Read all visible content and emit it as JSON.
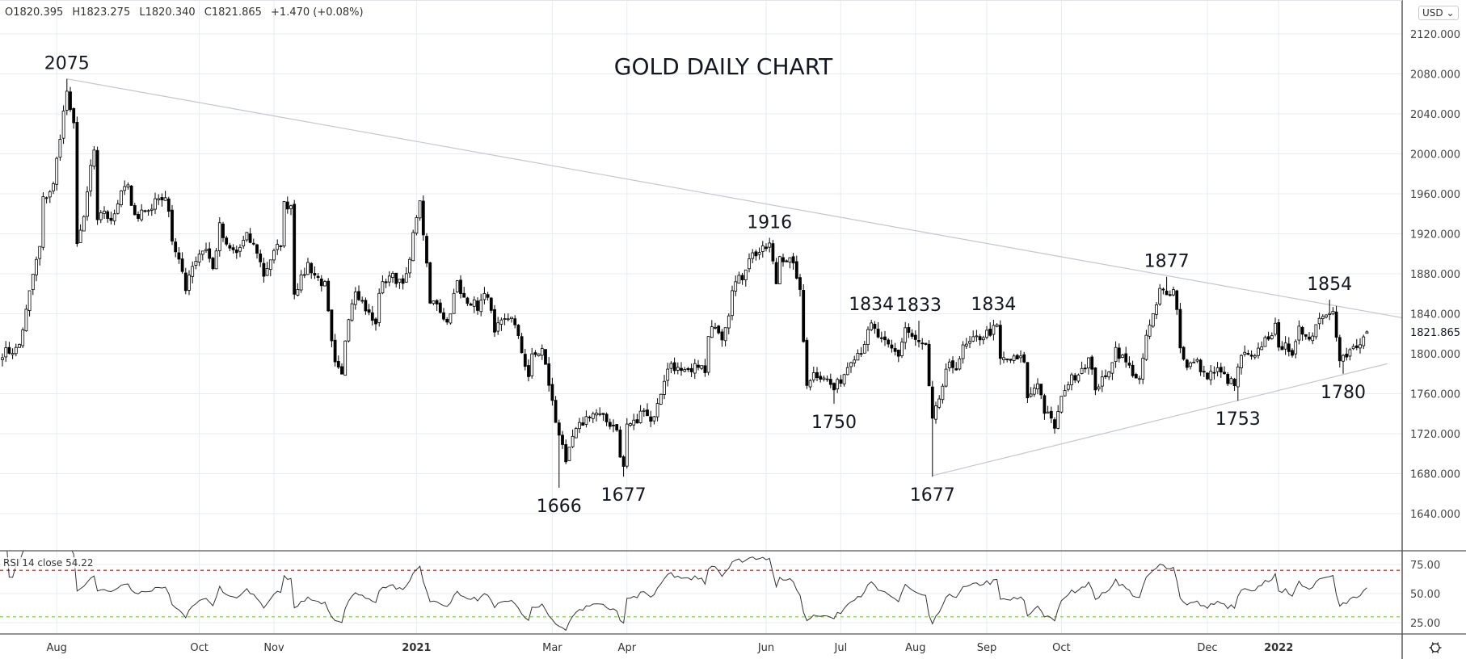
{
  "ohlc": {
    "open": "O1820.395",
    "high": "H1823.275",
    "low": "L1820.340",
    "close": "C1821.865",
    "change": "+1.470 (+0.08%)"
  },
  "currency_button": "USD ⌄",
  "rsi_label": "RSI 14 close  54.22",
  "settings_icon": "gear-icon",
  "colors": {
    "up_fill": "#ffffff",
    "down_fill": "#000000",
    "candle_border": "#000000",
    "trendline": "#c4c6ce",
    "grid": "#e6ecf2",
    "rsi_line": "#333333",
    "rsi_upper": "#cc0000",
    "rsi_lower": "#66dd00"
  },
  "chart_data": {
    "type": "candlestick",
    "title": "GOLD DAILY CHART",
    "ylim": [
      1600,
      2140
    ],
    "y_ticks": [
      "1640.000",
      "1680.000",
      "1720.000",
      "1760.000",
      "1800.000",
      "1840.000",
      "1880.000",
      "1920.000",
      "1960.000",
      "2000.000",
      "2040.000",
      "2080.000",
      "2120.000"
    ],
    "last_price": "1821.865",
    "x_ticks": [
      {
        "label": "Aug",
        "bar": 16,
        "bold": false
      },
      {
        "label": "Oct",
        "bar": 58,
        "bold": false
      },
      {
        "label": "Nov",
        "bar": 80,
        "bold": false
      },
      {
        "label": "2021",
        "bar": 122,
        "bold": true
      },
      {
        "label": "Mar",
        "bar": 162,
        "bold": false
      },
      {
        "label": "Apr",
        "bar": 184,
        "bold": false
      },
      {
        "label": "Jun",
        "bar": 225,
        "bold": false
      },
      {
        "label": "Jul",
        "bar": 247,
        "bold": false
      },
      {
        "label": "Aug",
        "bar": 269,
        "bold": false
      },
      {
        "label": "Sep",
        "bar": 290,
        "bold": false
      },
      {
        "label": "Oct",
        "bar": 312,
        "bold": false
      },
      {
        "label": "Dec",
        "bar": 355,
        "bold": false
      },
      {
        "label": "2022",
        "bar": 376,
        "bold": true
      }
    ],
    "close_path": [
      [
        0,
        1801
      ],
      [
        4,
        1804
      ],
      [
        5,
        1809
      ],
      [
        7,
        1842
      ],
      [
        9,
        1879
      ],
      [
        11,
        1906
      ],
      [
        12,
        1954
      ],
      [
        15,
        1968
      ],
      [
        17,
        2019
      ],
      [
        19,
        2063
      ],
      [
        20,
        2040
      ],
      [
        21,
        2028
      ],
      [
        22,
        1914
      ],
      [
        24,
        1933
      ],
      [
        26,
        1987
      ],
      [
        27,
        2003
      ],
      [
        28,
        1930
      ],
      [
        30,
        1944
      ],
      [
        32,
        1930
      ],
      [
        35,
        1965
      ],
      [
        37,
        1971
      ],
      [
        38,
        1944
      ],
      [
        40,
        1933
      ],
      [
        42,
        1947
      ],
      [
        44,
        1944
      ],
      [
        45,
        1955
      ],
      [
        47,
        1957
      ],
      [
        49,
        1947
      ],
      [
        50,
        1914
      ],
      [
        52,
        1893
      ],
      [
        54,
        1863
      ],
      [
        55,
        1882
      ],
      [
        58,
        1901
      ],
      [
        60,
        1906
      ],
      [
        62,
        1884
      ],
      [
        64,
        1927
      ],
      [
        66,
        1906
      ],
      [
        69,
        1901
      ],
      [
        72,
        1917
      ],
      [
        75,
        1903
      ],
      [
        77,
        1879
      ],
      [
        79,
        1895
      ],
      [
        82,
        1911
      ],
      [
        83,
        1949
      ],
      [
        85,
        1949
      ],
      [
        86,
        1863
      ],
      [
        88,
        1874
      ],
      [
        90,
        1890
      ],
      [
        92,
        1879
      ],
      [
        95,
        1868
      ],
      [
        96,
        1839
      ],
      [
        97,
        1809
      ],
      [
        98,
        1788
      ],
      [
        100,
        1777
      ],
      [
        101,
        1815
      ],
      [
        102,
        1839
      ],
      [
        104,
        1866
      ],
      [
        106,
        1852
      ],
      [
        108,
        1839
      ],
      [
        110,
        1828
      ],
      [
        111,
        1863
      ],
      [
        114,
        1879
      ],
      [
        116,
        1874
      ],
      [
        119,
        1876
      ],
      [
        120,
        1893
      ],
      [
        122,
        1941
      ],
      [
        123,
        1949
      ],
      [
        124,
        1922
      ],
      [
        126,
        1850
      ],
      [
        128,
        1852
      ],
      [
        129,
        1844
      ],
      [
        131,
        1831
      ],
      [
        134,
        1871
      ],
      [
        135,
        1858
      ],
      [
        137,
        1855
      ],
      [
        140,
        1847
      ],
      [
        143,
        1861
      ],
      [
        145,
        1818
      ],
      [
        146,
        1826
      ],
      [
        150,
        1839
      ],
      [
        153,
        1802
      ],
      [
        155,
        1778
      ],
      [
        156,
        1796
      ],
      [
        159,
        1804
      ],
      [
        161,
        1770
      ],
      [
        163,
        1732
      ],
      [
        165,
        1711
      ],
      [
        166,
        1687
      ],
      [
        168,
        1716
      ],
      [
        170,
        1727
      ],
      [
        173,
        1740
      ],
      [
        175,
        1740
      ],
      [
        178,
        1732
      ],
      [
        181,
        1727
      ],
      [
        182,
        1695
      ],
      [
        183,
        1687
      ],
      [
        184,
        1729
      ],
      [
        187,
        1732
      ],
      [
        189,
        1748
      ],
      [
        191,
        1732
      ],
      [
        193,
        1748
      ],
      [
        195,
        1775
      ],
      [
        197,
        1791
      ],
      [
        200,
        1780
      ],
      [
        203,
        1780
      ],
      [
        205,
        1791
      ],
      [
        207,
        1780
      ],
      [
        208,
        1815
      ],
      [
        210,
        1831
      ],
      [
        212,
        1818
      ],
      [
        214,
        1842
      ],
      [
        215,
        1868
      ],
      [
        218,
        1877
      ],
      [
        220,
        1898
      ],
      [
        224,
        1903
      ],
      [
        226,
        1909
      ],
      [
        228,
        1871
      ],
      [
        229,
        1898
      ],
      [
        232,
        1893
      ],
      [
        234,
        1879
      ],
      [
        235,
        1860
      ],
      [
        236,
        1812
      ],
      [
        237,
        1772
      ],
      [
        239,
        1780
      ],
      [
        242,
        1778
      ],
      [
        245,
        1764
      ],
      [
        248,
        1780
      ],
      [
        250,
        1796
      ],
      [
        253,
        1804
      ],
      [
        256,
        1828
      ],
      [
        259,
        1812
      ],
      [
        262,
        1804
      ],
      [
        264,
        1799
      ],
      [
        266,
        1826
      ],
      [
        269,
        1812
      ],
      [
        272,
        1807
      ],
      [
        273,
        1764
      ],
      [
        274,
        1732
      ],
      [
        275,
        1743
      ],
      [
        278,
        1780
      ],
      [
        279,
        1787
      ],
      [
        281,
        1788
      ],
      [
        283,
        1805
      ],
      [
        287,
        1815
      ],
      [
        293,
        1826
      ],
      [
        294,
        1794
      ],
      [
        301,
        1794
      ],
      [
        302,
        1754
      ],
      [
        305,
        1773
      ],
      [
        307,
        1743
      ],
      [
        310,
        1727
      ],
      [
        313,
        1767
      ],
      [
        320,
        1794
      ],
      [
        322,
        1767
      ],
      [
        325,
        1775
      ],
      [
        328,
        1805
      ],
      [
        332,
        1786
      ],
      [
        335,
        1773
      ],
      [
        336,
        1791
      ],
      [
        337,
        1818
      ],
      [
        340,
        1847
      ],
      [
        341,
        1863
      ],
      [
        345,
        1863
      ],
      [
        346,
        1847
      ],
      [
        347,
        1805
      ],
      [
        349,
        1789
      ],
      [
        352,
        1791
      ],
      [
        354,
        1778
      ],
      [
        358,
        1783
      ],
      [
        363,
        1768
      ],
      [
        365,
        1799
      ],
      [
        369,
        1794
      ],
      [
        371,
        1810
      ],
      [
        375,
        1826
      ],
      [
        376,
        1802
      ],
      [
        378,
        1815
      ],
      [
        380,
        1794
      ],
      [
        382,
        1823
      ],
      [
        386,
        1818
      ],
      [
        388,
        1839
      ],
      [
        390,
        1839
      ],
      [
        392,
        1847
      ],
      [
        393,
        1821
      ],
      [
        394,
        1797
      ],
      [
        396,
        1797
      ],
      [
        398,
        1805
      ],
      [
        400,
        1807
      ],
      [
        401,
        1818
      ],
      [
        402,
        1821.865
      ]
    ],
    "wick_extremes": {
      "highs": [
        [
          19,
          2075
        ],
        [
          226,
          1916
        ],
        [
          256,
          1834
        ],
        [
          270,
          1833
        ],
        [
          292,
          1834
        ],
        [
          343,
          1877
        ],
        [
          391,
          1854
        ]
      ],
      "lows": [
        [
          164,
          1666
        ],
        [
          183,
          1677
        ],
        [
          245,
          1750
        ],
        [
          274,
          1677
        ],
        [
          364,
          1753
        ],
        [
          395,
          1780
        ]
      ]
    },
    "annotations": [
      {
        "text": "2075",
        "bar": 19,
        "price": 2075,
        "pos": "above"
      },
      {
        "text": "1916",
        "bar": 226,
        "price": 1916,
        "pos": "above"
      },
      {
        "text": "1834",
        "bar": 256,
        "price": 1834,
        "pos": "above"
      },
      {
        "text": "1833",
        "bar": 270,
        "price": 1833,
        "pos": "above"
      },
      {
        "text": "1834",
        "bar": 292,
        "price": 1834,
        "pos": "above"
      },
      {
        "text": "1877",
        "bar": 343,
        "price": 1877,
        "pos": "above"
      },
      {
        "text": "1854",
        "bar": 391,
        "price": 1854,
        "pos": "above"
      },
      {
        "text": "1666",
        "bar": 164,
        "price": 1666,
        "pos": "below"
      },
      {
        "text": "1677",
        "bar": 183,
        "price": 1677,
        "pos": "below"
      },
      {
        "text": "1750",
        "bar": 245,
        "price": 1750,
        "pos": "below"
      },
      {
        "text": "1677",
        "bar": 274,
        "price": 1677,
        "pos": "below"
      },
      {
        "text": "1753",
        "bar": 364,
        "price": 1753,
        "pos": "below"
      },
      {
        "text": "1780",
        "bar": 395,
        "price": 1780,
        "pos": "below"
      }
    ],
    "trendlines": [
      {
        "from": [
          19,
          2075
        ],
        "to": [
          413,
          1836
        ]
      },
      {
        "from": [
          274,
          1678
        ],
        "to": [
          408,
          1790
        ]
      }
    ],
    "rsi": {
      "period": 14,
      "last": 54.22,
      "ticks": [
        "75.00",
        "50.00",
        "25.00"
      ],
      "upper_band": 70,
      "lower_band": 30
    }
  }
}
